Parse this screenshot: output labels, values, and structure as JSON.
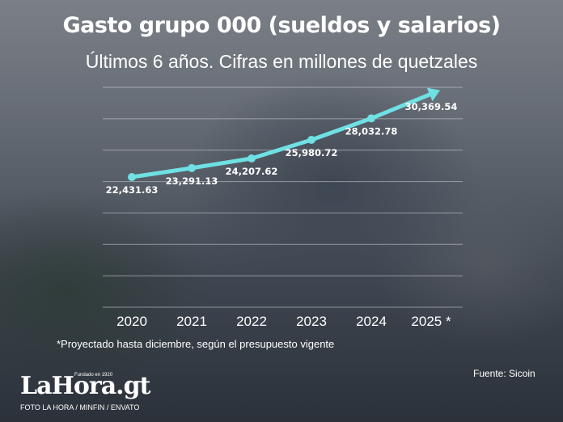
{
  "header": {
    "title": "Gasto grupo 000 (sueldos y salarios)",
    "subtitle": "Últimos 6 años. Cifras en millones de quetzales"
  },
  "chart_data": {
    "type": "line",
    "categories": [
      "2020",
      "2021",
      "2022",
      "2023",
      "2024",
      "2025 *"
    ],
    "values": [
      22431.63,
      23291.13,
      24207.62,
      25980.72,
      28032.78,
      30369.54
    ],
    "data_labels": [
      "22,431.63",
      "23,291.13",
      "24,207.62",
      "25,980.72",
      "28,032.78",
      "30,369.54"
    ],
    "ylim": [
      10000,
      31000
    ],
    "grid": true,
    "line_color": "#6fe0e4",
    "label_color": "#ffffff",
    "grid_color": "#c8ccd2"
  },
  "footer": {
    "footnote": "*Proyectado hasta diciembre, según el presupuesto vigente",
    "source": "Fuente: Sicoin",
    "logo_text": "LaHora.gt",
    "logo_tagline": "Fundado en 1920",
    "credit": "FOTO LA HORA / MINFIN / ENVATO"
  }
}
